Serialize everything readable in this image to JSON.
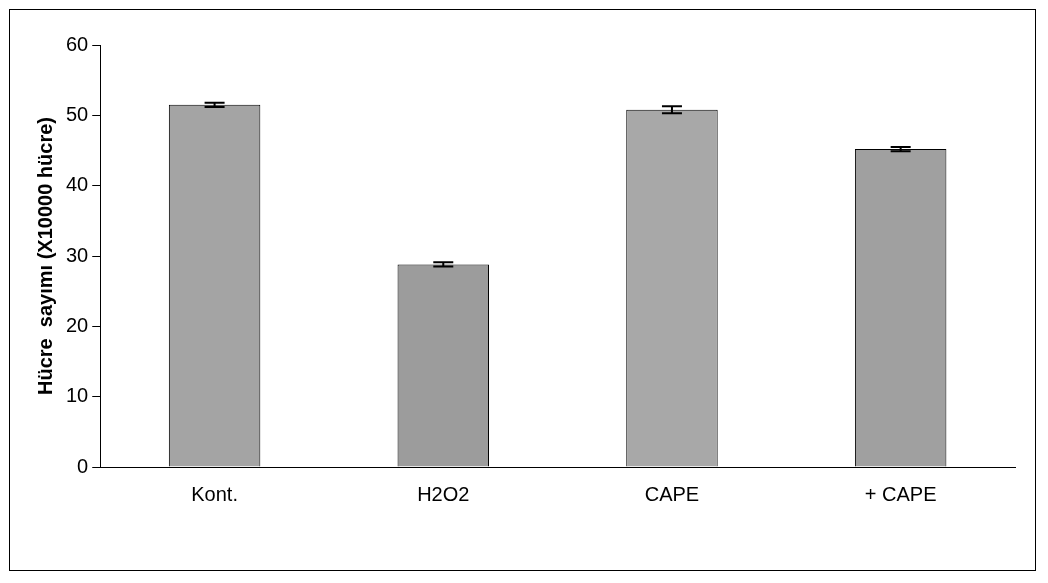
{
  "chart_data": {
    "type": "bar",
    "ylabel": "Hücre  sayımı (X10000 hücre)",
    "categories": [
      "Kont.",
      "H2O2",
      "CAPE",
      "+ CAPE"
    ],
    "values": [
      51.5,
      28.8,
      50.8,
      45.2
    ],
    "errors": [
      0.3,
      0.3,
      0.5,
      0.3
    ],
    "colors": [
      "#a4a4a4",
      "#9c9c9c",
      "#a8a8a8",
      "#a0a0a0"
    ],
    "ylim": [
      0,
      60
    ],
    "yticks": [
      0,
      10,
      20,
      30,
      40,
      50,
      60
    ],
    "grid": false,
    "legend": false
  }
}
